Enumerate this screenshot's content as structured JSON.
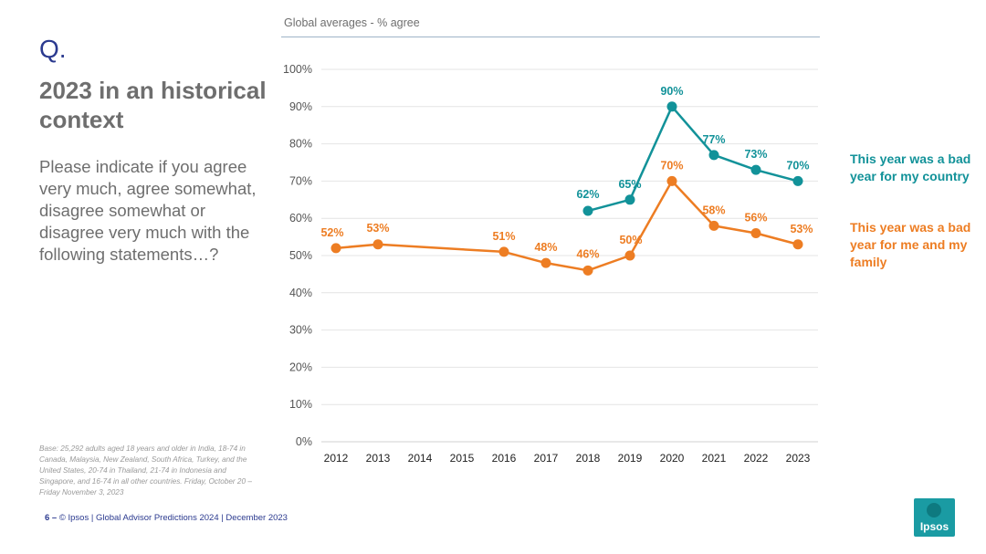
{
  "slide": {
    "q_mark": "Q.",
    "title": "2023 in an historical context",
    "question": "Please indicate if you agree very much, agree somewhat, disagree somewhat or disagree very much with the following statements…?",
    "base_note": "Base: 25,292 adults aged 18 years and older in India, 18-74 in Canada, Malaysia, New Zealand, South Africa, Turkey, and the United States, 20-74 in Thailand, 21-74 in Indonesia and Singapore, and 16-74 in all other countries. Friday, October 20 – Friday November 3, 2023",
    "footer": {
      "page": "6 –",
      "text": "© Ipsos | Global Advisor Predictions 2024 | December 2023"
    },
    "logo_text": "Ipsos"
  },
  "colors": {
    "country": "#129299",
    "family": "#ed7d23",
    "text_gray": "#6e6e6e",
    "brand_blue": "#2b3a8f"
  },
  "chart_data": {
    "type": "line",
    "title": "Global averages - % agree",
    "x": [
      "2012",
      "2013",
      "2014",
      "2015",
      "2016",
      "2017",
      "2018",
      "2019",
      "2020",
      "2021",
      "2022",
      "2023"
    ],
    "ylim": [
      0,
      100
    ],
    "yticks": [
      "0%",
      "10%",
      "20%",
      "30%",
      "40%",
      "50%",
      "60%",
      "70%",
      "80%",
      "90%",
      "100%"
    ],
    "grid": true,
    "legend_position": "right",
    "series": [
      {
        "key": "country",
        "name": "This year was a bad year for my country",
        "points": [
          {
            "x": "2018",
            "value": 62,
            "label": "62%"
          },
          {
            "x": "2019",
            "value": 65,
            "label": "65%"
          },
          {
            "x": "2020",
            "value": 90,
            "label": "90%"
          },
          {
            "x": "2021",
            "value": 77,
            "label": "77%"
          },
          {
            "x": "2022",
            "value": 73,
            "label": "73%"
          },
          {
            "x": "2023",
            "value": 70,
            "label": "70%"
          }
        ]
      },
      {
        "key": "family",
        "name": "This year was a bad year for me and my family",
        "points": [
          {
            "x": "2012",
            "value": 52,
            "label": "52%"
          },
          {
            "x": "2013",
            "value": 53,
            "label": "53%"
          },
          {
            "x": "2016",
            "value": 51,
            "label": "51%"
          },
          {
            "x": "2017",
            "value": 48,
            "label": "48%"
          },
          {
            "x": "2018",
            "value": 46,
            "label": "46%"
          },
          {
            "x": "2019",
            "value": 50,
            "label": "50%"
          },
          {
            "x": "2020",
            "value": 70,
            "label": "70%"
          },
          {
            "x": "2021",
            "value": 58,
            "label": "58%"
          },
          {
            "x": "2022",
            "value": 56,
            "label": "56%"
          },
          {
            "x": "2023",
            "value": 53,
            "label": "53%"
          }
        ]
      }
    ]
  }
}
